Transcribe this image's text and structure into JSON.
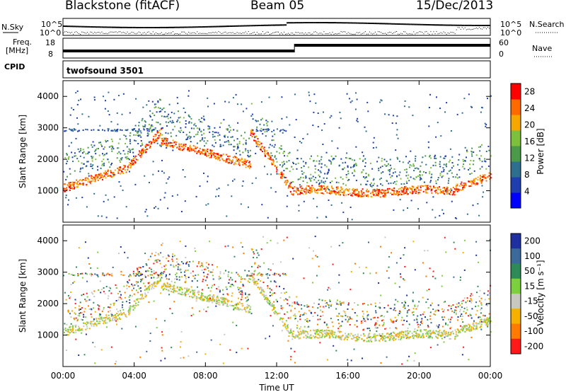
{
  "header": {
    "title_left": "Blackstone (fitACF)",
    "title_center": "Beam 05",
    "title_right": "15/Dec/2013"
  },
  "panels": {
    "nsky_label": "N.Sky",
    "nsearch_label": "N.Search",
    "nsky_ticks": [
      "10^5",
      "10^0"
    ],
    "nsearch_ticks": [
      "10^5",
      "10^0"
    ],
    "freq_label_1": "Freq.",
    "freq_label_2": "[MHz]",
    "freq_ticks": [
      "18",
      "8"
    ],
    "nave_label": "Nave",
    "nave_ticks": [
      "60",
      "0"
    ],
    "cpid_label": "CPID",
    "cpid_value": "twofsound 3501"
  },
  "chart_data": [
    {
      "type": "heatmap",
      "name": "power",
      "ylabel": "Slant Range [km]",
      "xlabel": "Time UT",
      "x_ticks": [
        "00:00",
        "04:00",
        "08:00",
        "12:00",
        "16:00",
        "20:00",
        "00:00"
      ],
      "y_ticks": [
        1000,
        2000,
        3000,
        4000
      ],
      "ylim": [
        0,
        4500
      ],
      "xlim_hours": [
        0,
        24
      ],
      "colorbar_label": "Power [dB]",
      "colorbar_ticks": [
        4,
        8,
        12,
        16,
        20,
        24,
        28
      ],
      "colorbar_range": [
        0,
        30
      ],
      "colors": [
        "#0000ff",
        "#1f3fae",
        "#2e6e8e",
        "#4a9a4a",
        "#7cc03c",
        "#f6a800",
        "#ff6a00",
        "#ff0000"
      ]
    },
    {
      "type": "heatmap",
      "name": "velocity",
      "ylabel": "Slant Range [km]",
      "xlabel": "Time UT",
      "x_ticks": [
        "00:00",
        "04:00",
        "08:00",
        "12:00",
        "16:00",
        "20:00",
        "00:00"
      ],
      "y_ticks": [
        1000,
        2000,
        3000,
        4000
      ],
      "ylim": [
        0,
        4500
      ],
      "xlim_hours": [
        0,
        24
      ],
      "colorbar_label": "Velocity [m s⁻¹]",
      "colorbar_ticks": [
        200,
        100,
        50,
        15,
        -15,
        -50,
        -100,
        -200
      ],
      "colors": [
        "#1f2fa0",
        "#3b6a9a",
        "#2e8b57",
        "#7cd03c",
        "#c8c8c0",
        "#f6b000",
        "#ff7a00",
        "#ff1a1a"
      ]
    }
  ],
  "xaxis_label": "Time UT"
}
